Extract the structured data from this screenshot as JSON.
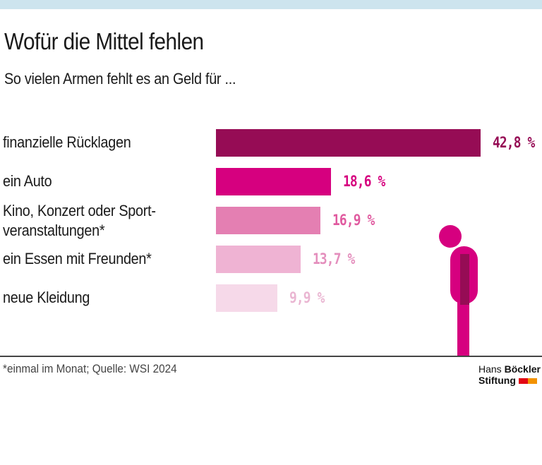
{
  "header": {
    "title": "Wofür die Mittel fehlen",
    "subtitle": "So vielen Armen fehlt es an Geld für  ..."
  },
  "chart_data": {
    "type": "bar",
    "orientation": "horizontal",
    "title": "Wofür die Mittel fehlen",
    "subtitle": "So vielen Armen fehlt es an Geld für  ...",
    "categories": [
      "finanzielle Rücklagen",
      "ein Auto",
      "Kino, Konzert oder Sport-\nveranstaltungen*",
      "ein Essen mit Freunden*",
      "neue Kleidung"
    ],
    "category_lines": [
      [
        "finanzielle Rücklagen"
      ],
      [
        "ein Auto"
      ],
      [
        "Kino, Konzert oder Sport-",
        "veranstaltungen*"
      ],
      [
        "ein Essen mit Freunden*"
      ],
      [
        "neue Kleidung"
      ]
    ],
    "values": [
      42.8,
      18.6,
      16.9,
      13.7,
      9.9
    ],
    "value_labels": [
      "42,8 %",
      "18,6 %",
      "16,9 %",
      "13,7 %",
      "9,9 %"
    ],
    "unit": "%",
    "colors": [
      "#960c55",
      "#d6007f",
      "#e47fb2",
      "#efb3d3",
      "#f6d9e9"
    ],
    "label_colors": [
      "#960c55",
      "#d6007f",
      "#e05a9f",
      "#e48fbd",
      "#eab6d2"
    ],
    "xlim": [
      0,
      42.8
    ],
    "grid": false
  },
  "footer": {
    "source": "*einmal im Monat; Quelle: WSI 2024",
    "logo_line1_a": "Hans ",
    "logo_line1_b": "Böckler",
    "logo_line2": "Stiftung",
    "logo_colors": [
      "#e30613",
      "#f39200"
    ]
  },
  "decoration": {
    "figure_color": "#d6007f",
    "figure_accent": "#960c55"
  }
}
